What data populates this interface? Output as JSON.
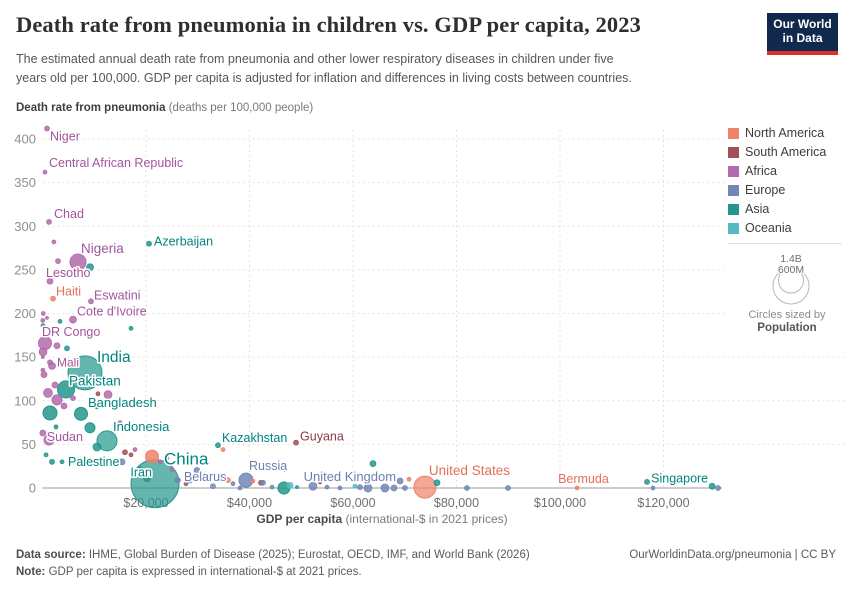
{
  "header": {
    "title": "Death rate from pneumonia in children vs. GDP per capita, 2023",
    "subtitle_line1": "The estimated annual death rate from pneumonia and other lower respiratory diseases in children under five",
    "subtitle_line2": "years old per 100,000. GDP per capita is adjusted for inflation and differences in living costs between countries."
  },
  "logo": {
    "line1": "Our World",
    "line2": "in Data"
  },
  "y_axis_title": {
    "bold": "Death rate from pneumonia",
    "rest": " (deaths per 100,000 people)"
  },
  "chart_data": {
    "type": "scatter",
    "title": "Death rate from pneumonia in children vs. GDP per capita, 2023",
    "xlabel_bold": "GDP per capita",
    "xlabel_rest": " (international-$ in 2021 prices)",
    "xlim": [
      0,
      131000
    ],
    "ylim": [
      0,
      415
    ],
    "grid": true,
    "x_ticks": [
      {
        "value": 20000,
        "label": "$20,000"
      },
      {
        "value": 40000,
        "label": "$40,000"
      },
      {
        "value": 60000,
        "label": "$60,000"
      },
      {
        "value": 80000,
        "label": "$80,000"
      },
      {
        "value": 100000,
        "label": "$100,000"
      },
      {
        "value": 120000,
        "label": "$120,000"
      }
    ],
    "y_ticks": [
      0,
      50,
      100,
      150,
      200,
      250,
      300,
      350,
      400
    ],
    "points": [
      {
        "n": "Niger",
        "c": "af",
        "g": 870,
        "v": 412,
        "r": 2.5,
        "lx": 3,
        "ly": 12,
        "fs": 12.5
      },
      {
        "n": "Central African Republic",
        "c": "af",
        "g": 480,
        "v": 362,
        "r": 2,
        "lx": 4,
        "ly": -5,
        "fs": 12.5
      },
      {
        "n": "Chad",
        "c": "af",
        "g": 1260,
        "v": 305,
        "r": 2.5,
        "lx": 5,
        "ly": -4,
        "fs": 12.5
      },
      {
        "n": "Nigeria",
        "c": "af",
        "g": 6860,
        "v": 259,
        "r": 8,
        "lx": 3,
        "ly": -9,
        "fs": 13.5
      },
      {
        "n": "Azerbaijan",
        "c": "as",
        "g": 20580,
        "v": 280,
        "r": 2.5,
        "lx": 5,
        "ly": 2,
        "fs": 12.5
      },
      {
        "n": "Lesotho",
        "c": "af",
        "g": 1450,
        "v": 237,
        "r": 3,
        "lx": -4,
        "ly": -4,
        "fs": 12.5
      },
      {
        "n": "Haiti",
        "c": "na",
        "g": 2030,
        "v": 217,
        "r": 2.5,
        "lx": 3,
        "ly": -3,
        "fs": 12.5
      },
      {
        "n": "Eswatini",
        "c": "af",
        "g": 9370,
        "v": 214,
        "r": 2.5,
        "lx": 3,
        "ly": -2,
        "fs": 12.5
      },
      {
        "n": "Cote d'Ivoire",
        "c": "af",
        "g": 5890,
        "v": 193,
        "r": 3.5,
        "lx": 4,
        "ly": -4,
        "fs": 12.5
      },
      {
        "n": "DR Congo",
        "c": "af",
        "g": 480,
        "v": 166,
        "r": 6.5,
        "lx": -3,
        "ly": -7,
        "fs": 12.5
      },
      {
        "n": "Mali",
        "c": "af",
        "g": 1450,
        "v": 144,
        "r": 2.5,
        "lx": 7,
        "ly": 4,
        "fs": 12
      },
      {
        "n": "India",
        "c": "as",
        "g": 8210,
        "v": 132,
        "r": 17,
        "lx": 12,
        "ly": -11,
        "fs": 15.5
      },
      {
        "n": "Pakistan",
        "c": "as",
        "g": 4540,
        "v": 113,
        "r": 8.5,
        "lx": 3,
        "ly": -4,
        "fs": 13.5
      },
      {
        "n": "Bangladesh",
        "c": "as",
        "g": 7440,
        "v": 85,
        "r": 6.5,
        "lx": 7,
        "ly": -7,
        "fs": 13
      },
      {
        "n": "Sudan",
        "c": "af",
        "g": 60,
        "v": 63,
        "r": 3,
        "lx": 4,
        "ly": 8,
        "fs": 12.5
      },
      {
        "n": "Indonesia",
        "c": "as",
        "g": 12460,
        "v": 54,
        "r": 10,
        "lx": 6,
        "ly": -10,
        "fs": 13
      },
      {
        "n": "Kazakhstan",
        "c": "as",
        "g": 33910,
        "v": 49,
        "r": 2.5,
        "lx": 4,
        "ly": -3,
        "fs": 12.5
      },
      {
        "n": "Guyana",
        "c": "sa",
        "g": 48990,
        "v": 52,
        "r": 2.5,
        "lx": 4,
        "ly": -2,
        "fs": 12.5
      },
      {
        "n": "Palestine",
        "c": "as",
        "g": 3770,
        "v": 30,
        "r": 2,
        "lx": 6,
        "ly": 4,
        "fs": 12.5
      },
      {
        "n": "China",
        "c": "as",
        "g": 21740,
        "v": 5,
        "r": 24,
        "lx": 9,
        "ly": -19,
        "fs": 17
      },
      {
        "n": "Iran",
        "c": "as",
        "g": 20190,
        "v": 11,
        "r": 3.5,
        "lx": 5,
        "ly": -2,
        "fs": 12.5,
        "a": "end"
      },
      {
        "n": "Belarus",
        "c": "eu",
        "g": 26180,
        "v": 9,
        "r": 2.5,
        "lx": 6,
        "ly": 1,
        "fs": 12.5
      },
      {
        "n": "Russia",
        "c": "eu",
        "g": 39320,
        "v": 9,
        "r": 7,
        "lx": 3,
        "ly": -10,
        "fs": 12.5
      },
      {
        "n": "United Kingdom",
        "c": "eu",
        "g": 69100,
        "v": 8,
        "r": 3,
        "lx": -4,
        "ly": 0,
        "fs": 13,
        "a": "end"
      },
      {
        "n": "United States",
        "c": "na",
        "g": 73900,
        "v": 1,
        "r": 11,
        "lx": 4,
        "ly": -12,
        "fs": 13.5
      },
      {
        "n": "Bermuda",
        "c": "na",
        "g": 103300,
        "v": 0,
        "r": 2,
        "lx": -19,
        "ly": -5,
        "fs": 12.5
      },
      {
        "n": "Singapore",
        "c": "as",
        "g": 129400,
        "v": 2,
        "r": 3,
        "lx": -4,
        "ly": -4,
        "fs": 12.5,
        "a": "end"
      },
      {
        "c": "af",
        "g": 2200,
        "v": 282,
        "r": 2
      },
      {
        "c": "af",
        "g": 3000,
        "v": 260,
        "r": 2.5
      },
      {
        "c": "af",
        "g": 150,
        "v": 200,
        "r": 2
      },
      {
        "c": "af",
        "g": 870,
        "v": 195,
        "r": 1.5
      },
      {
        "c": "af",
        "g": 60,
        "v": 192,
        "r": 2
      },
      {
        "c": "af",
        "g": 2800,
        "v": 163,
        "r": 3
      },
      {
        "c": "af",
        "g": 100,
        "v": 156,
        "r": 4
      },
      {
        "c": "af",
        "g": 60,
        "v": 150,
        "r": 1.5
      },
      {
        "c": "af",
        "g": 1840,
        "v": 140,
        "r": 3.5
      },
      {
        "c": "af",
        "g": 80,
        "v": 135,
        "r": 2
      },
      {
        "c": "af",
        "g": 290,
        "v": 130,
        "r": 3
      },
      {
        "c": "af",
        "g": 2420,
        "v": 118,
        "r": 3
      },
      {
        "c": "af",
        "g": 1060,
        "v": 109,
        "r": 4.5
      },
      {
        "c": "af",
        "g": 2800,
        "v": 101,
        "r": 5
      },
      {
        "c": "af",
        "g": 5890,
        "v": 103,
        "r": 2.5
      },
      {
        "c": "af",
        "g": 12660,
        "v": 107,
        "r": 4
      },
      {
        "c": "af",
        "g": 4150,
        "v": 94,
        "r": 3
      },
      {
        "c": "af",
        "g": 14980,
        "v": 75,
        "r": 2
      },
      {
        "c": "af",
        "g": 1260,
        "v": 55,
        "r": 5
      },
      {
        "c": "af",
        "g": 17870,
        "v": 44,
        "r": 2
      },
      {
        "c": "af",
        "g": 22700,
        "v": 30,
        "r": 2
      },
      {
        "c": "af",
        "g": 25020,
        "v": 21,
        "r": 2
      },
      {
        "c": "as",
        "g": 9180,
        "v": 253,
        "r": 3.5
      },
      {
        "c": "as",
        "g": 100,
        "v": 186,
        "r": 2
      },
      {
        "c": "as",
        "g": 3380,
        "v": 191,
        "r": 2
      },
      {
        "c": "as",
        "g": 17100,
        "v": 183,
        "r": 2
      },
      {
        "c": "as",
        "g": 4730,
        "v": 160,
        "r": 2.5
      },
      {
        "c": "as",
        "g": 1450,
        "v": 86,
        "r": 7
      },
      {
        "c": "as",
        "g": 10530,
        "v": 93,
        "r": 2
      },
      {
        "c": "as",
        "g": 9180,
        "v": 69,
        "r": 5
      },
      {
        "c": "as",
        "g": 2610,
        "v": 70,
        "r": 2
      },
      {
        "c": "as",
        "g": 10530,
        "v": 47,
        "r": 4
      },
      {
        "c": "as",
        "g": 680,
        "v": 38,
        "r": 2
      },
      {
        "c": "as",
        "g": 1840,
        "v": 30,
        "r": 2.5
      },
      {
        "c": "as",
        "g": 18840,
        "v": 21,
        "r": 3
      },
      {
        "c": "as",
        "g": 20390,
        "v": 15,
        "r": 2.5
      },
      {
        "c": "as",
        "g": 46660,
        "v": 0,
        "r": 6
      },
      {
        "c": "as",
        "g": 46860,
        "v": 22,
        "r": 2.5
      },
      {
        "c": "as",
        "g": 49180,
        "v": 1,
        "r": 1.5
      },
      {
        "c": "as",
        "g": 63860,
        "v": 28,
        "r": 3
      },
      {
        "c": "as",
        "g": 76230,
        "v": 6,
        "r": 3
      },
      {
        "c": "as",
        "g": 116810,
        "v": 7,
        "r": 2.5
      },
      {
        "c": "na",
        "g": 15360,
        "v": 70,
        "r": 1.5
      },
      {
        "c": "na",
        "g": 21160,
        "v": 36,
        "r": 6.5
      },
      {
        "c": "na",
        "g": 24060,
        "v": 34,
        "r": 2
      },
      {
        "c": "na",
        "g": 34880,
        "v": 44,
        "r": 2
      },
      {
        "c": "na",
        "g": 35840,
        "v": 9,
        "r": 2.5
      },
      {
        "c": "na",
        "g": 40670,
        "v": 8,
        "r": 2
      },
      {
        "c": "na",
        "g": 70820,
        "v": 10,
        "r": 2
      },
      {
        "c": "sa",
        "g": 10720,
        "v": 108,
        "r": 2
      },
      {
        "c": "sa",
        "g": 15940,
        "v": 41,
        "r": 2.5
      },
      {
        "c": "sa",
        "g": 17100,
        "v": 38,
        "r": 2
      },
      {
        "c": "sa",
        "g": 25990,
        "v": 38,
        "r": 2
      },
      {
        "c": "sa",
        "g": 27730,
        "v": 5,
        "r": 2
      },
      {
        "c": "sa",
        "g": 32560,
        "v": 13,
        "r": 2
      },
      {
        "c": "sa",
        "g": 42220,
        "v": 6,
        "r": 2.5
      },
      {
        "c": "sa",
        "g": 53620,
        "v": 7,
        "r": 2
      },
      {
        "c": "eu",
        "g": 15360,
        "v": 30,
        "r": 3
      },
      {
        "c": "eu",
        "g": 29850,
        "v": 20,
        "r": 3
      },
      {
        "c": "eu",
        "g": 25990,
        "v": 9,
        "r": 2.5
      },
      {
        "c": "eu",
        "g": 28500,
        "v": 8,
        "r": 2
      },
      {
        "c": "eu",
        "g": 32940,
        "v": 2,
        "r": 2.5
      },
      {
        "c": "eu",
        "g": 36810,
        "v": 5,
        "r": 2
      },
      {
        "c": "eu",
        "g": 38160,
        "v": 0,
        "r": 2
      },
      {
        "c": "eu",
        "g": 42610,
        "v": 6,
        "r": 2.5
      },
      {
        "c": "eu",
        "g": 44350,
        "v": 1,
        "r": 2
      },
      {
        "c": "oc",
        "g": 47820,
        "v": 3,
        "r": 3
      },
      {
        "c": "eu",
        "g": 52270,
        "v": 2,
        "r": 4
      },
      {
        "c": "eu",
        "g": 54970,
        "v": 1,
        "r": 2
      },
      {
        "c": "eu",
        "g": 57480,
        "v": 0,
        "r": 2
      },
      {
        "c": "oc",
        "g": 60380,
        "v": 2,
        "r": 2
      },
      {
        "c": "eu",
        "g": 61350,
        "v": 1,
        "r": 2.5
      },
      {
        "c": "eu",
        "g": 62890,
        "v": 0,
        "r": 4
      },
      {
        "c": "eu",
        "g": 66180,
        "v": 0,
        "r": 4
      },
      {
        "c": "eu",
        "g": 67920,
        "v": 0,
        "r": 3
      },
      {
        "c": "eu",
        "g": 70040,
        "v": 0,
        "r": 2.5
      },
      {
        "c": "eu",
        "g": 82020,
        "v": 0,
        "r": 2.5
      },
      {
        "c": "eu",
        "g": 89940,
        "v": 0,
        "r": 2.5
      },
      {
        "c": "eu",
        "g": 117970,
        "v": 0,
        "r": 2
      },
      {
        "c": "eu",
        "g": 130530,
        "v": 0,
        "r": 2.5
      }
    ]
  },
  "legend": {
    "items": [
      {
        "key": "na",
        "label": "North America"
      },
      {
        "key": "sa",
        "label": "South America"
      },
      {
        "key": "af",
        "label": "Africa"
      },
      {
        "key": "eu",
        "label": "Europe"
      },
      {
        "key": "as",
        "label": "Asia"
      },
      {
        "key": "oc",
        "label": "Oceania"
      }
    ],
    "size": {
      "big": "1.4B",
      "small": "600M",
      "caption": "Circles sized by",
      "caption_bold": "Population"
    }
  },
  "colors": {
    "continents": {
      "na": {
        "fill": "#ee8268",
        "text": "#e56e5a"
      },
      "sa": {
        "fill": "#a05058",
        "text": "#8d3946"
      },
      "af": {
        "fill": "#b16bac",
        "text": "#a2559c"
      },
      "eu": {
        "fill": "#7287b7",
        "text": "#6d80ad"
      },
      "as": {
        "fill": "#23978c",
        "text": "#00847e"
      },
      "oc": {
        "fill": "#58b9c2",
        "text": "#58aca5"
      }
    },
    "grid": "#e3e3e3",
    "axis": "#9a9a9a",
    "logo_bg": "#12294e",
    "logo_accent": "#dc2f30"
  },
  "footer": {
    "source_label": "Data source:",
    "source_text": " IHME, Global Burden of Disease (2025); Eurostat, OECD, IMF, and World Bank (2026)",
    "link": "OurWorldinData.org/pneumonia | CC BY",
    "note_label": "Note:",
    "note_text": " GDP per capita is expressed in international-$ at 2021 prices."
  }
}
